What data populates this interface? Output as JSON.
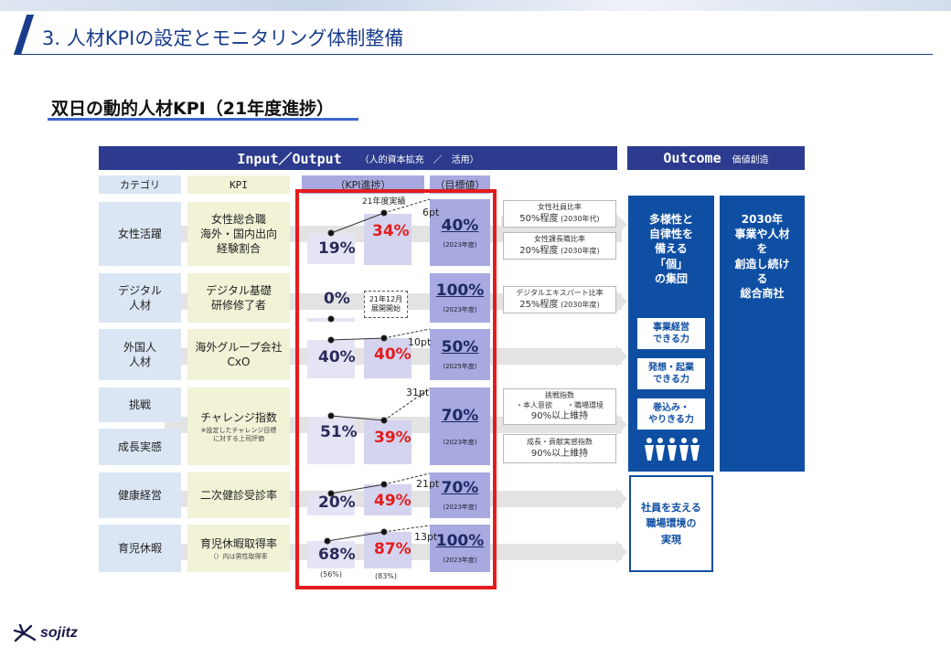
{
  "header": {
    "title": "3. 人材KPIの設定とモニタリング体制整備"
  },
  "subtitle": "双日の動的人材KPI（21年度進捗）",
  "bands": {
    "io_label": "Input／Output",
    "io_sub": "（人的資本拡充　／　活用）",
    "out_label": "Outcome",
    "out_sub": "価値創造"
  },
  "columns": {
    "category": "カテゴリ",
    "kpi": "KPI",
    "progress": "（KPI進捗）",
    "goal": "（目標値）"
  },
  "rows": [
    {
      "category": "女性活躍",
      "kpi": "女性総合職\n海外・国内出向\n経験割合",
      "prev": "19%",
      "current": "34%",
      "pt": "6pt",
      "goal": "40%",
      "goal_year": "(2023年度)"
    },
    {
      "category": "デジタル\n人材",
      "kpi": "デジタル基礎\n研修修了者",
      "prev": "0%",
      "current_note": "21年12月\n展開開始",
      "goal": "100%",
      "goal_year": "(2023年度)"
    },
    {
      "category": "外国人\n人材",
      "kpi": "海外グループ会社\nCxO",
      "prev": "40%",
      "current": "40%",
      "pt": "10pt",
      "goal": "50%",
      "goal_year": "(2025年度)"
    },
    {
      "category": "挑戦",
      "category2": "成長実感",
      "kpi": "チャレンジ指数",
      "kpi_note": "※設定したチャレンジ目標\nに対する上司評価",
      "prev": "51%",
      "current": "39%",
      "pt": "31pt",
      "goal": "70%",
      "goal_year": "(2023年度)"
    },
    {
      "category": "健康経営",
      "kpi": "二次健診受診率",
      "prev": "20%",
      "current": "49%",
      "pt": "21pt",
      "goal": "70%",
      "goal_year": "(2023年度)"
    },
    {
      "category": "育児休暇",
      "kpi": "育児休暇取得率",
      "kpi_note": "（）内は男性取得率",
      "prev": "68%",
      "current": "87%",
      "pt": "13pt",
      "goal": "100%",
      "goal_year": "(2023年度)",
      "prev_sub": "(56%)",
      "current_sub": "(83%)"
    }
  ],
  "labels": {
    "actual": "21年度実績"
  },
  "info_boxes": [
    {
      "title": "女性社員比率",
      "value": "50%程度",
      "note": "(2030年代)"
    },
    {
      "title": "女性課長職比率",
      "value": "20%程度",
      "note": "(2030年度)"
    },
    {
      "title": "デジタルエキスパート比率",
      "value": "25%程度",
      "note": "(2030年度)"
    },
    {
      "title": "挑戦指数\n・本人意欲　　・職場環境",
      "value": "90%以上維持",
      "note": ""
    },
    {
      "title": "成長・貢献実感指数",
      "value": "90%以上維持",
      "note": ""
    }
  ],
  "outcome": {
    "box1": "多様性と\n自律性を\n備える\n「個」\nの集団",
    "box2": "2030年\n事業や人材\nを\n創造し続け\nる\n総合商社",
    "abilities": [
      "事業経営\nできる力",
      "発想・起業\nできる力",
      "巻込み・\nやりきる力"
    ],
    "people_icon": "people-group-icon",
    "box3": "社員を支える\n職場環境の\n実現"
  },
  "logo": {
    "text": "sojitz",
    "icon": "sojitz-logo-icon"
  },
  "colors": {
    "navy": "#2c3b8e",
    "blue": "#0f4fa3",
    "red": "#e41c1c",
    "purple": "#a7a9e0"
  }
}
